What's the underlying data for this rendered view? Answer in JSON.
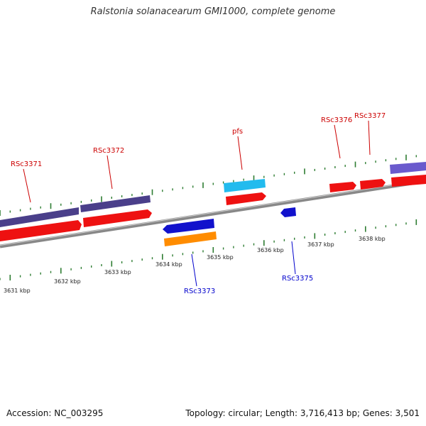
{
  "title": "Ralstonia solanacearum GMI1000, complete genome",
  "footer": {
    "accession": "Accession: NC_003295",
    "summary": "Topology: circular; Length: 3,716,413 bp; Genes: 3,501"
  },
  "colors": {
    "forward_label": "#cc0000",
    "reverse_label": "#0000cc",
    "cds": "#ee1111",
    "gene_purple": "#4a3f8a",
    "gene_cyan": "#22bbee",
    "gene_blue": "#1111cc",
    "gene_orange": "#ff8c00",
    "tick": "#2e7d32",
    "backbone": "#888888"
  },
  "kbp_labels": [
    "3631 kbp",
    "3632 kbp",
    "3633 kbp",
    "3634 kbp",
    "3635 kbp",
    "3636 kbp",
    "3637 kbp",
    "3638 kbp"
  ],
  "forward_genes": [
    "RSc3371",
    "RSc3372",
    "pfs",
    "RSc3376",
    "RSc3377"
  ],
  "reverse_genes": [
    "RSc3373",
    "RSc3375"
  ]
}
